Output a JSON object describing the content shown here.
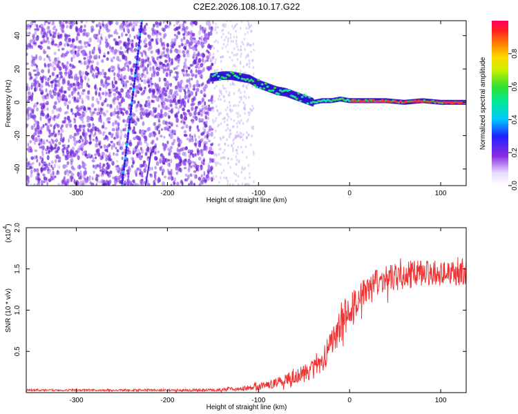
{
  "chart_data": [
    {
      "type": "heatmap",
      "title": "C2E2.2026.108.10.17.G22",
      "xlabel": "Height of straight line (km)",
      "ylabel": "Frequency (Hz)",
      "xlim": [
        -355,
        128
      ],
      "ylim": [
        -50,
        49
      ],
      "xticks": [
        -300,
        -200,
        -100,
        0,
        100
      ],
      "yticks": [
        -40,
        -20,
        0,
        20,
        40
      ],
      "colorbar": {
        "label": "Normalized spectral amplitude",
        "range": [
          0,
          1
        ],
        "ticks": [
          "0.0",
          "0.2",
          "0.4",
          "0.6",
          "0.8"
        ],
        "tick_values": [
          0.0,
          0.2,
          0.4,
          0.6,
          0.8
        ]
      },
      "ridge": {
        "description_points": [
          [
            -150,
            15
          ],
          [
            -110,
            14
          ],
          [
            -80,
            7
          ],
          [
            -40,
            0
          ],
          [
            0,
            1
          ],
          [
            128,
            0
          ]
        ],
        "values": [
          [
            -150,
            15
          ],
          [
            -140,
            16
          ],
          [
            -130,
            16
          ],
          [
            -120,
            15
          ],
          [
            -110,
            14
          ],
          [
            -100,
            11
          ],
          [
            -90,
            9
          ],
          [
            -80,
            7
          ],
          [
            -70,
            6
          ],
          [
            -60,
            4
          ],
          [
            -50,
            2
          ],
          [
            -40,
            0
          ],
          [
            -30,
            1
          ],
          [
            -20,
            1
          ],
          [
            -10,
            2
          ],
          [
            0,
            1
          ],
          [
            20,
            1
          ],
          [
            40,
            1
          ],
          [
            60,
            0
          ],
          [
            80,
            1
          ],
          [
            100,
            0
          ],
          [
            128,
            0
          ]
        ]
      },
      "streak": [
        [
          -250,
          -50
        ],
        [
          -228,
          49
        ]
      ]
    },
    {
      "type": "line",
      "xlabel": "Height of straight line (km)",
      "ylabel": "SNR (10 * v/v)",
      "exponent_label": "(x10",
      "exponent_power": "4",
      "exponent_close": ")",
      "xlim": [
        -355,
        128
      ],
      "ylim": [
        0,
        2.0
      ],
      "xticks": [
        -300,
        -200,
        -100,
        0,
        100
      ],
      "yticks": [
        "0.5",
        "1.0",
        "1.5",
        "2.0"
      ],
      "ytick_values": [
        0.5,
        1.0,
        1.5,
        2.0
      ],
      "series": [
        {
          "name": "SNR",
          "color": "#ee3333",
          "envelope": [
            [
              -355,
              0.03
            ],
            [
              -200,
              0.03
            ],
            [
              -150,
              0.03
            ],
            [
              -120,
              0.05
            ],
            [
              -100,
              0.07
            ],
            [
              -80,
              0.12
            ],
            [
              -60,
              0.2
            ],
            [
              -40,
              0.28
            ],
            [
              -25,
              0.45
            ],
            [
              -15,
              0.7
            ],
            [
              -5,
              0.95
            ],
            [
              10,
              1.15
            ],
            [
              25,
              1.3
            ],
            [
              40,
              1.38
            ],
            [
              60,
              1.42
            ],
            [
              80,
              1.45
            ],
            [
              100,
              1.45
            ],
            [
              128,
              1.44
            ]
          ],
          "noise": [
            [
              -355,
              0.01
            ],
            [
              -150,
              0.015
            ],
            [
              -100,
              0.04
            ],
            [
              -60,
              0.08
            ],
            [
              -30,
              0.15
            ],
            [
              -10,
              0.2
            ],
            [
              10,
              0.18
            ],
            [
              128,
              0.15
            ]
          ]
        }
      ]
    }
  ]
}
